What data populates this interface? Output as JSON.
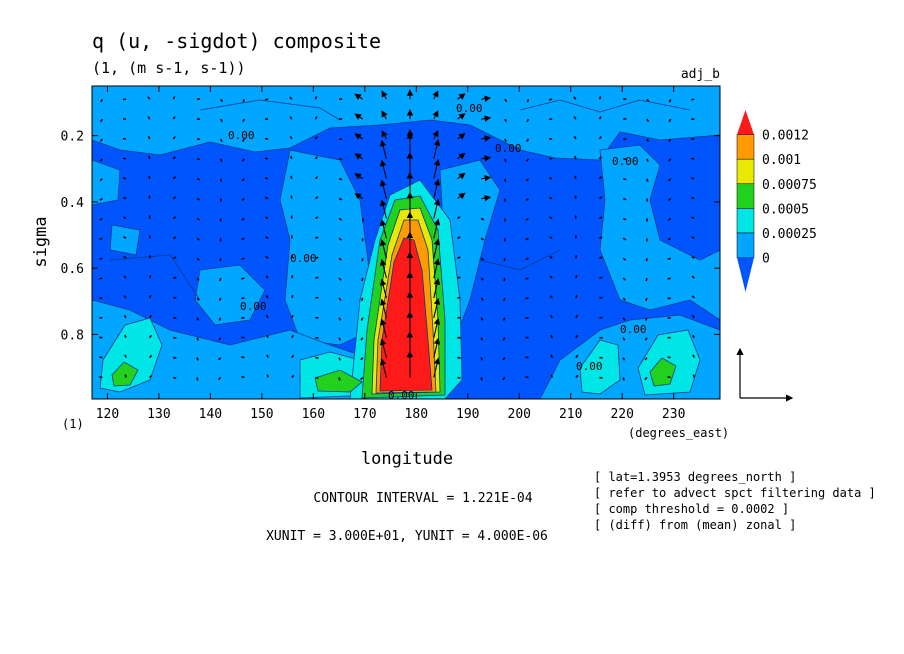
{
  "chart_data": {
    "type": "heatmap",
    "title": "q (u, -sigdot) composite",
    "subtitle": "(1, (m s-1, s-1))",
    "experiment_label": "adj_b",
    "xlabel": "longitude",
    "x_unit": "(degrees_east)",
    "ylabel": "sigma",
    "y_unit": "(1)",
    "xlim": [
      117,
      239
    ],
    "ylim": [
      0.995,
      0.05
    ],
    "x_ticks": [
      "120",
      "130",
      "140",
      "150",
      "160",
      "170",
      "180",
      "190",
      "200",
      "210",
      "220",
      "230"
    ],
    "y_ticks": [
      "0.2",
      "0.4",
      "0.6",
      "0.8"
    ],
    "y_tick_values": [
      0.2,
      0.4,
      0.6,
      0.8
    ],
    "legend": {
      "placement": "right",
      "levels": [
        "0.0012",
        "0.001",
        "0.00075",
        "0.0005",
        "0.00025",
        "0"
      ],
      "colors": [
        "#ff1a1a",
        "#ff9a00",
        "#e8e800",
        "#22d01e",
        "#00e6e6",
        "#00a6ff",
        "#0055ff"
      ]
    },
    "contour_labels": [
      "0.00"
    ],
    "vectors": {
      "xunit": 30.0,
      "yunit": 4e-06
    },
    "features": [
      {
        "name": "main-plume",
        "lon": 179,
        "sigma_top": 0.34,
        "sigma_bottom": 0.99,
        "max": 0.0013
      },
      {
        "name": "blob-126",
        "lon": 126,
        "sigma": 0.93,
        "max": 0.00055
      },
      {
        "name": "blob-163",
        "lon": 163,
        "sigma": 0.94,
        "max": 0.0005
      },
      {
        "name": "blob-214",
        "lon": 214,
        "sigma": 0.9,
        "max": 0.0004
      },
      {
        "name": "blob-228",
        "lon": 228,
        "sigma": 0.92,
        "max": 0.0006
      }
    ]
  },
  "footer": {
    "contour_interval": "CONTOUR INTERVAL = 1.221E-04",
    "units": "XUNIT = 3.000E+01, YUNIT = 4.000E-06"
  },
  "notes": [
    "[ lat=1.3953 degrees_north ]",
    "[ refer to advect spct filtering data ]",
    "[ comp threshold = 0.0002 ]",
    "[ (diff) from (mean) zonal ]"
  ]
}
